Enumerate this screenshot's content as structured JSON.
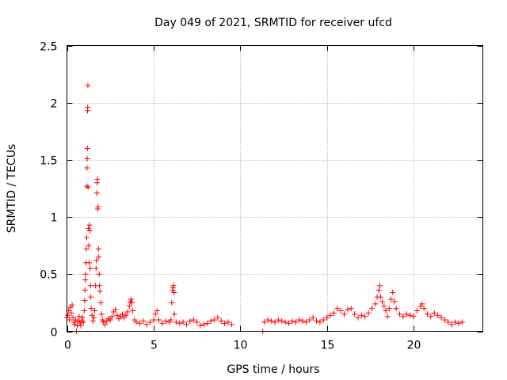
{
  "chart_data": {
    "type": "scatter",
    "title": "Day 049 of 2021, SRMTID for receiver ufcd",
    "xlabel": "GPS time / hours",
    "ylabel": "SRMTID / TECUs",
    "xlim": [
      0,
      24
    ],
    "ylim": [
      0,
      2.5
    ],
    "x_ticks": [
      0,
      5,
      10,
      15,
      20
    ],
    "x_tick_labels": [
      "0",
      "5",
      "10",
      "15",
      "20"
    ],
    "y_ticks": [
      0,
      0.5,
      1,
      1.5,
      2,
      2.5
    ],
    "y_tick_labels": [
      "0",
      "0.5",
      "1",
      "1.5",
      "2",
      "2.5"
    ],
    "grid": true,
    "marker": "+",
    "color": "#ff0000",
    "series": [
      {
        "name": "SRMTID",
        "points": [
          [
            0.0,
            0.12
          ],
          [
            0.05,
            0.14
          ],
          [
            0.1,
            0.18
          ],
          [
            0.15,
            0.1
          ],
          [
            0.2,
            0.21
          ],
          [
            0.25,
            0.16
          ],
          [
            0.3,
            0.23
          ],
          [
            0.35,
            0.12
          ],
          [
            0.4,
            0.08
          ],
          [
            0.45,
            0.06
          ],
          [
            0.5,
            0.1
          ],
          [
            0.55,
            0.0
          ],
          [
            0.6,
            0.05
          ],
          [
            0.65,
            0.09
          ],
          [
            0.7,
            0.13
          ],
          [
            0.75,
            0.08
          ],
          [
            0.8,
            0.05
          ],
          [
            0.85,
            0.09
          ],
          [
            0.9,
            0.12
          ],
          [
            0.95,
            0.08
          ],
          [
            1.0,
            0.18
          ],
          [
            1.02,
            0.27
          ],
          [
            1.04,
            0.36
          ],
          [
            1.06,
            0.45
          ],
          [
            1.08,
            0.5
          ],
          [
            1.1,
            0.6
          ],
          [
            1.12,
            0.72
          ],
          [
            1.14,
            0.82
          ],
          [
            1.15,
            1.27
          ],
          [
            1.16,
            1.43
          ],
          [
            1.17,
            1.51
          ],
          [
            1.18,
            1.6
          ],
          [
            1.19,
            1.93
          ],
          [
            1.2,
            1.96
          ],
          [
            1.21,
            2.15
          ],
          [
            1.22,
            1.26
          ],
          [
            1.24,
            0.9
          ],
          [
            1.26,
            0.75
          ],
          [
            1.28,
            0.6
          ],
          [
            1.3,
            0.93
          ],
          [
            1.32,
            0.88
          ],
          [
            1.34,
            0.55
          ],
          [
            1.36,
            0.4
          ],
          [
            1.38,
            0.3
          ],
          [
            1.4,
            0.2
          ],
          [
            1.45,
            0.14
          ],
          [
            1.5,
            0.09
          ],
          [
            1.55,
            0.12
          ],
          [
            1.6,
            0.18
          ],
          [
            1.65,
            0.4
          ],
          [
            1.68,
            0.55
          ],
          [
            1.7,
            0.62
          ],
          [
            1.72,
            1.21
          ],
          [
            1.74,
            1.3
          ],
          [
            1.76,
            1.33
          ],
          [
            1.78,
            1.07
          ],
          [
            1.8,
            1.09
          ],
          [
            1.82,
            0.72
          ],
          [
            1.84,
            0.65
          ],
          [
            1.86,
            0.5
          ],
          [
            1.88,
            0.4
          ],
          [
            1.9,
            0.35
          ],
          [
            1.95,
            0.25
          ],
          [
            2.0,
            0.15
          ],
          [
            2.05,
            0.1
          ],
          [
            2.1,
            0.08
          ],
          [
            2.2,
            0.06
          ],
          [
            2.3,
            0.09
          ],
          [
            2.4,
            0.11
          ],
          [
            2.5,
            0.1
          ],
          [
            2.6,
            0.13
          ],
          [
            2.7,
            0.17
          ],
          [
            2.8,
            0.19
          ],
          [
            2.9,
            0.14
          ],
          [
            3.0,
            0.11
          ],
          [
            3.1,
            0.13
          ],
          [
            3.2,
            0.15
          ],
          [
            3.3,
            0.12
          ],
          [
            3.4,
            0.14
          ],
          [
            3.5,
            0.17
          ],
          [
            3.6,
            0.22
          ],
          [
            3.65,
            0.26
          ],
          [
            3.7,
            0.28
          ],
          [
            3.75,
            0.25
          ],
          [
            3.8,
            0.18
          ],
          [
            3.9,
            0.1
          ],
          [
            4.0,
            0.08
          ],
          [
            4.2,
            0.07
          ],
          [
            4.4,
            0.09
          ],
          [
            4.6,
            0.06
          ],
          [
            4.8,
            0.08
          ],
          [
            5.0,
            0.1
          ],
          [
            5.1,
            0.15
          ],
          [
            5.2,
            0.18
          ],
          [
            5.3,
            0.1
          ],
          [
            5.5,
            0.07
          ],
          [
            5.7,
            0.09
          ],
          [
            5.9,
            0.08
          ],
          [
            6.0,
            0.1
          ],
          [
            6.05,
            0.25
          ],
          [
            6.1,
            0.36
          ],
          [
            6.12,
            0.38
          ],
          [
            6.15,
            0.4
          ],
          [
            6.18,
            0.34
          ],
          [
            6.2,
            0.15
          ],
          [
            6.3,
            0.08
          ],
          [
            6.5,
            0.07
          ],
          [
            6.7,
            0.08
          ],
          [
            6.9,
            0.06
          ],
          [
            7.1,
            0.09
          ],
          [
            7.3,
            0.1
          ],
          [
            7.5,
            0.08
          ],
          [
            7.7,
            0.05
          ],
          [
            7.9,
            0.06
          ],
          [
            8.1,
            0.07
          ],
          [
            8.3,
            0.09
          ],
          [
            8.5,
            0.1
          ],
          [
            8.7,
            0.12
          ],
          [
            8.9,
            0.09
          ],
          [
            9.1,
            0.07
          ],
          [
            9.3,
            0.08
          ],
          [
            9.5,
            0.06
          ],
          [
            11.3,
            0.0
          ],
          [
            11.4,
            0.08
          ],
          [
            11.6,
            0.1
          ],
          [
            11.8,
            0.09
          ],
          [
            12.0,
            0.08
          ],
          [
            12.2,
            0.1
          ],
          [
            12.4,
            0.09
          ],
          [
            12.6,
            0.08
          ],
          [
            12.8,
            0.07
          ],
          [
            13.0,
            0.09
          ],
          [
            13.2,
            0.08
          ],
          [
            13.4,
            0.1
          ],
          [
            13.6,
            0.09
          ],
          [
            13.8,
            0.08
          ],
          [
            14.0,
            0.1
          ],
          [
            14.2,
            0.12
          ],
          [
            14.4,
            0.09
          ],
          [
            14.6,
            0.08
          ],
          [
            14.8,
            0.1
          ],
          [
            15.0,
            0.12
          ],
          [
            15.2,
            0.14
          ],
          [
            15.4,
            0.16
          ],
          [
            15.6,
            0.2
          ],
          [
            15.8,
            0.18
          ],
          [
            16.0,
            0.15
          ],
          [
            16.2,
            0.19
          ],
          [
            16.4,
            0.2
          ],
          [
            16.6,
            0.15
          ],
          [
            16.8,
            0.12
          ],
          [
            17.0,
            0.14
          ],
          [
            17.2,
            0.13
          ],
          [
            17.4,
            0.16
          ],
          [
            17.6,
            0.2
          ],
          [
            17.8,
            0.24
          ],
          [
            17.9,
            0.3
          ],
          [
            18.0,
            0.36
          ],
          [
            18.05,
            0.4
          ],
          [
            18.1,
            0.3
          ],
          [
            18.2,
            0.26
          ],
          [
            18.3,
            0.22
          ],
          [
            18.4,
            0.18
          ],
          [
            18.5,
            0.13
          ],
          [
            18.6,
            0.2
          ],
          [
            18.7,
            0.28
          ],
          [
            18.8,
            0.34
          ],
          [
            18.9,
            0.26
          ],
          [
            19.0,
            0.2
          ],
          [
            19.2,
            0.15
          ],
          [
            19.4,
            0.13
          ],
          [
            19.6,
            0.15
          ],
          [
            19.8,
            0.14
          ],
          [
            20.0,
            0.13
          ],
          [
            20.2,
            0.18
          ],
          [
            20.4,
            0.22
          ],
          [
            20.5,
            0.24
          ],
          [
            20.6,
            0.2
          ],
          [
            20.8,
            0.15
          ],
          [
            21.0,
            0.13
          ],
          [
            21.2,
            0.16
          ],
          [
            21.4,
            0.14
          ],
          [
            21.6,
            0.12
          ],
          [
            21.8,
            0.1
          ],
          [
            22.0,
            0.08
          ],
          [
            22.2,
            0.06
          ],
          [
            22.4,
            0.08
          ],
          [
            22.6,
            0.07
          ],
          [
            22.8,
            0.08
          ]
        ]
      }
    ]
  }
}
